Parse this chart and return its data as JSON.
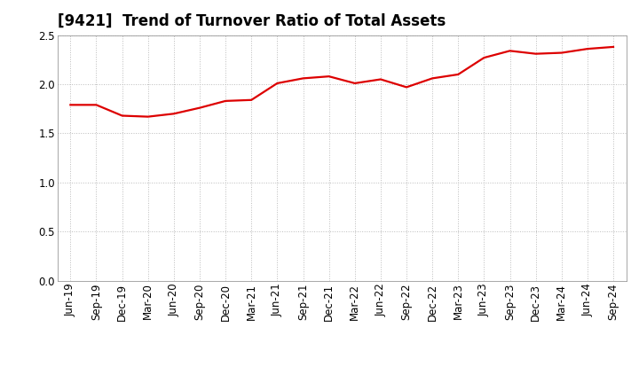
{
  "title": "[9421]  Trend of Turnover Ratio of Total Assets",
  "x_labels": [
    "Jun-19",
    "Sep-19",
    "Dec-19",
    "Mar-20",
    "Jun-20",
    "Sep-20",
    "Dec-20",
    "Mar-21",
    "Jun-21",
    "Sep-21",
    "Dec-21",
    "Mar-22",
    "Jun-22",
    "Sep-22",
    "Dec-22",
    "Mar-23",
    "Jun-23",
    "Sep-23",
    "Dec-23",
    "Mar-24",
    "Jun-24",
    "Sep-24"
  ],
  "values": [
    1.79,
    1.79,
    1.68,
    1.67,
    1.7,
    1.76,
    1.83,
    1.84,
    2.01,
    2.06,
    2.08,
    2.01,
    2.05,
    1.97,
    2.06,
    2.1,
    2.27,
    2.34,
    2.31,
    2.32,
    2.36,
    2.38
  ],
  "line_color": "#dd0000",
  "line_width": 1.6,
  "ylim": [
    0.0,
    2.5
  ],
  "yticks": [
    0.0,
    0.5,
    1.0,
    1.5,
    2.0,
    2.5
  ],
  "grid_color": "#bbbbbb",
  "bg_color": "#ffffff",
  "title_fontsize": 12,
  "tick_fontsize": 8.5
}
